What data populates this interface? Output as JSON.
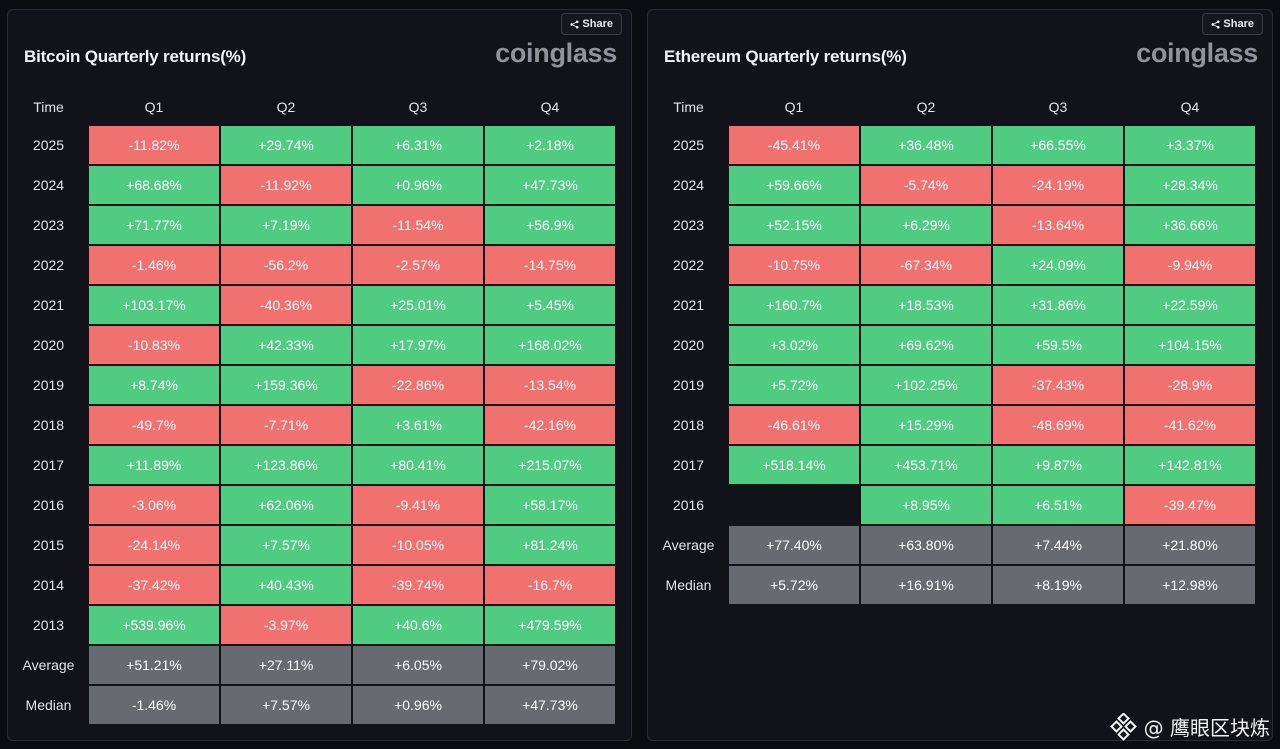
{
  "share_label": "Share",
  "watermark_text": "@ 鹰眼区块炼",
  "colors": {
    "positive": "#4fcb82",
    "negative": "#f0716f",
    "stat": "#676a70",
    "background": "#121318"
  },
  "panels": [
    {
      "id": "btc",
      "title": "Bitcoin Quarterly returns(%)",
      "logo": "coinglass",
      "headers": [
        "Time",
        "Q1",
        "Q2",
        "Q3",
        "Q4"
      ],
      "rows": [
        {
          "label": "2025",
          "values": [
            "-11.82%",
            "+29.74%",
            "+6.31%",
            "+2.18%"
          ]
        },
        {
          "label": "2024",
          "values": [
            "+68.68%",
            "-11.92%",
            "+0.96%",
            "+47.73%"
          ]
        },
        {
          "label": "2023",
          "values": [
            "+71.77%",
            "+7.19%",
            "-11.54%",
            "+56.9%"
          ]
        },
        {
          "label": "2022",
          "values": [
            "-1.46%",
            "-56.2%",
            "-2.57%",
            "-14.75%"
          ]
        },
        {
          "label": "2021",
          "values": [
            "+103.17%",
            "-40.36%",
            "+25.01%",
            "+5.45%"
          ]
        },
        {
          "label": "2020",
          "values": [
            "-10.83%",
            "+42.33%",
            "+17.97%",
            "+168.02%"
          ]
        },
        {
          "label": "2019",
          "values": [
            "+8.74%",
            "+159.36%",
            "-22.86%",
            "-13.54%"
          ]
        },
        {
          "label": "2018",
          "values": [
            "-49.7%",
            "-7.71%",
            "+3.61%",
            "-42.16%"
          ]
        },
        {
          "label": "2017",
          "values": [
            "+11.89%",
            "+123.86%",
            "+80.41%",
            "+215.07%"
          ]
        },
        {
          "label": "2016",
          "values": [
            "-3.06%",
            "+62.06%",
            "-9.41%",
            "+58.17%"
          ]
        },
        {
          "label": "2015",
          "values": [
            "-24.14%",
            "+7.57%",
            "-10.05%",
            "+81.24%"
          ]
        },
        {
          "label": "2014",
          "values": [
            "-37.42%",
            "+40.43%",
            "-39.74%",
            "-16.7%"
          ]
        },
        {
          "label": "2013",
          "values": [
            "+539.96%",
            "-3.97%",
            "+40.6%",
            "+479.59%"
          ]
        }
      ],
      "stats": [
        {
          "label": "Average",
          "values": [
            "+51.21%",
            "+27.11%",
            "+6.05%",
            "+79.02%"
          ]
        },
        {
          "label": "Median",
          "values": [
            "-1.46%",
            "+7.57%",
            "+0.96%",
            "+47.73%"
          ]
        }
      ]
    },
    {
      "id": "eth",
      "title": "Ethereum Quarterly returns(%)",
      "logo": "coinglass",
      "headers": [
        "Time",
        "Q1",
        "Q2",
        "Q3",
        "Q4"
      ],
      "rows": [
        {
          "label": "2025",
          "values": [
            "-45.41%",
            "+36.48%",
            "+66.55%",
            "+3.37%"
          ]
        },
        {
          "label": "2024",
          "values": [
            "+59.66%",
            "-5.74%",
            "-24.19%",
            "+28.34%"
          ]
        },
        {
          "label": "2023",
          "values": [
            "+52.15%",
            "+6.29%",
            "-13.64%",
            "+36.66%"
          ]
        },
        {
          "label": "2022",
          "values": [
            "-10.75%",
            "-67.34%",
            "+24.09%",
            "-9.94%"
          ]
        },
        {
          "label": "2021",
          "values": [
            "+160.7%",
            "+18.53%",
            "+31.86%",
            "+22.59%"
          ]
        },
        {
          "label": "2020",
          "values": [
            "+3.02%",
            "+69.62%",
            "+59.5%",
            "+104.15%"
          ]
        },
        {
          "label": "2019",
          "values": [
            "+5.72%",
            "+102.25%",
            "-37.43%",
            "-28.9%"
          ]
        },
        {
          "label": "2018",
          "values": [
            "-46.61%",
            "+15.29%",
            "-48.69%",
            "-41.62%"
          ]
        },
        {
          "label": "2017",
          "values": [
            "+518.14%",
            "+453.71%",
            "+9.87%",
            "+142.81%"
          ]
        },
        {
          "label": "2016",
          "values": [
            "",
            "+8.95%",
            "+6.51%",
            "-39.47%"
          ]
        }
      ],
      "stats": [
        {
          "label": "Average",
          "values": [
            "+77.40%",
            "+63.80%",
            "+7.44%",
            "+21.80%"
          ]
        },
        {
          "label": "Median",
          "values": [
            "+5.72%",
            "+16.91%",
            "+8.19%",
            "+12.98%"
          ]
        }
      ]
    }
  ]
}
